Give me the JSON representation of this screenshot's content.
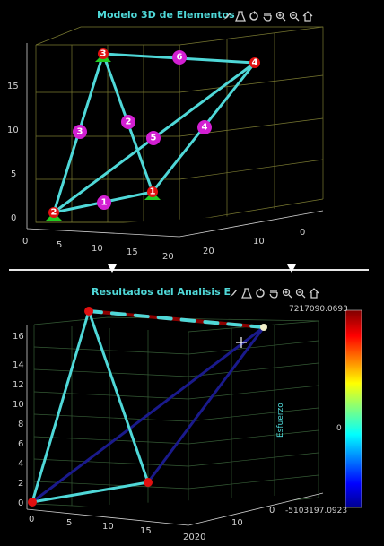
{
  "top_panel": {
    "title": "Modelo 3D de Elementos",
    "z_ticks": [
      "0",
      "5",
      "10",
      "15"
    ],
    "x_ticks": [
      "0",
      "5",
      "10",
      "15",
      "20"
    ],
    "y_ticks": [
      "0",
      "10",
      "20"
    ],
    "node_labels": [
      "1",
      "2",
      "3",
      "4",
      "5",
      "6"
    ],
    "element_labels": [
      "1",
      "2",
      "3",
      "4",
      "5",
      "6"
    ]
  },
  "bottom_panel": {
    "title": "Resultados del Analisis E",
    "z_ticks": [
      "0",
      "2",
      "4",
      "6",
      "8",
      "10",
      "12",
      "14",
      "16"
    ],
    "x_ticks": [
      "0",
      "5",
      "10",
      "15",
      "2020"
    ],
    "y_ticks": [
      "0",
      "10"
    ],
    "colorbar_label": "Esfuerzo",
    "colorbar_max": "7217090.0693",
    "colorbar_mid": "0",
    "colorbar_min": "-5103197.0923"
  },
  "toolbar_icons": [
    "brush-icon",
    "flask-icon",
    "rotate-icon",
    "pan-hand-icon",
    "zoom-in-icon",
    "zoom-out-icon",
    "home-icon"
  ],
  "sliders": [
    {
      "name": "left-slider",
      "value": 0.43
    },
    {
      "name": "right-slider",
      "value": 0.51
    }
  ],
  "colors": {
    "element": "#4fd8d8",
    "element_label_bg": "#d21fd2",
    "node": "#e01010",
    "support": "#22cc22",
    "compression": "#1a1a8c",
    "tension": "#8b0000"
  }
}
